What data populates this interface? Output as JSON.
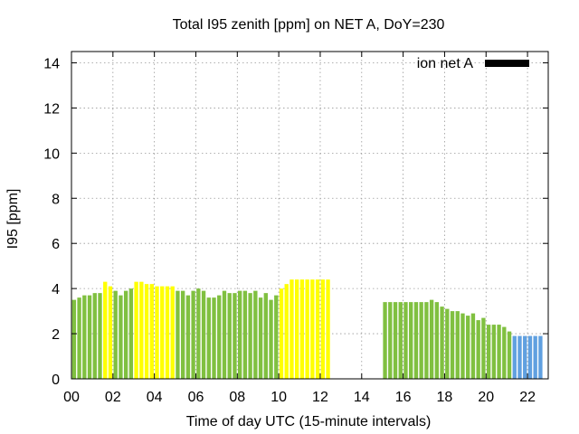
{
  "chart_data": {
    "type": "bar",
    "title": "Total I95 zenith [ppm] on NET A, DoY=230",
    "xlabel": "Time of day UTC (15-minute intervals)",
    "ylabel": "I95 [ppm]",
    "xlim": [
      0,
      23
    ],
    "ylim": [
      0,
      14.5
    ],
    "x_ticks": [
      "00",
      "02",
      "04",
      "06",
      "08",
      "10",
      "12",
      "14",
      "16",
      "18",
      "20",
      "22"
    ],
    "x_tick_values": [
      0,
      2,
      4,
      6,
      8,
      10,
      12,
      14,
      16,
      18,
      20,
      22
    ],
    "y_ticks": [
      "0",
      "2",
      "4",
      "6",
      "8",
      "10",
      "12",
      "14"
    ],
    "y_tick_values": [
      0,
      2,
      4,
      6,
      8,
      10,
      12,
      14
    ],
    "grid": true,
    "legend": {
      "label": "ion net A",
      "position": "top-right",
      "color": "#000000"
    },
    "colors": {
      "green": "#80c040",
      "yellow": "#ffff00",
      "blue": "#60a0e0"
    },
    "bar_width_hours": 0.19,
    "bars": [
      {
        "t": 0.125,
        "v": 3.5,
        "c": "green"
      },
      {
        "t": 0.375,
        "v": 3.6,
        "c": "green"
      },
      {
        "t": 0.625,
        "v": 3.7,
        "c": "green"
      },
      {
        "t": 0.875,
        "v": 3.7,
        "c": "green"
      },
      {
        "t": 1.125,
        "v": 3.8,
        "c": "green"
      },
      {
        "t": 1.375,
        "v": 3.8,
        "c": "green"
      },
      {
        "t": 1.625,
        "v": 4.3,
        "c": "yellow"
      },
      {
        "t": 1.875,
        "v": 4.1,
        "c": "yellow"
      },
      {
        "t": 2.125,
        "v": 3.9,
        "c": "green"
      },
      {
        "t": 2.375,
        "v": 3.7,
        "c": "green"
      },
      {
        "t": 2.625,
        "v": 3.9,
        "c": "green"
      },
      {
        "t": 2.875,
        "v": 4.0,
        "c": "green"
      },
      {
        "t": 3.125,
        "v": 4.3,
        "c": "yellow"
      },
      {
        "t": 3.375,
        "v": 4.3,
        "c": "yellow"
      },
      {
        "t": 3.625,
        "v": 4.2,
        "c": "yellow"
      },
      {
        "t": 3.875,
        "v": 4.2,
        "c": "yellow"
      },
      {
        "t": 4.125,
        "v": 4.1,
        "c": "yellow"
      },
      {
        "t": 4.375,
        "v": 4.1,
        "c": "yellow"
      },
      {
        "t": 4.625,
        "v": 4.1,
        "c": "yellow"
      },
      {
        "t": 4.875,
        "v": 4.1,
        "c": "yellow"
      },
      {
        "t": 5.125,
        "v": 3.9,
        "c": "green"
      },
      {
        "t": 5.375,
        "v": 3.9,
        "c": "green"
      },
      {
        "t": 5.625,
        "v": 3.7,
        "c": "green"
      },
      {
        "t": 5.875,
        "v": 3.9,
        "c": "green"
      },
      {
        "t": 6.125,
        "v": 4.0,
        "c": "green"
      },
      {
        "t": 6.375,
        "v": 3.9,
        "c": "green"
      },
      {
        "t": 6.625,
        "v": 3.6,
        "c": "green"
      },
      {
        "t": 6.875,
        "v": 3.6,
        "c": "green"
      },
      {
        "t": 7.125,
        "v": 3.7,
        "c": "green"
      },
      {
        "t": 7.375,
        "v": 3.9,
        "c": "green"
      },
      {
        "t": 7.625,
        "v": 3.8,
        "c": "green"
      },
      {
        "t": 7.875,
        "v": 3.8,
        "c": "green"
      },
      {
        "t": 8.125,
        "v": 3.9,
        "c": "green"
      },
      {
        "t": 8.375,
        "v": 3.9,
        "c": "green"
      },
      {
        "t": 8.625,
        "v": 3.8,
        "c": "green"
      },
      {
        "t": 8.875,
        "v": 3.9,
        "c": "green"
      },
      {
        "t": 9.125,
        "v": 3.6,
        "c": "green"
      },
      {
        "t": 9.375,
        "v": 3.8,
        "c": "green"
      },
      {
        "t": 9.625,
        "v": 3.5,
        "c": "green"
      },
      {
        "t": 9.875,
        "v": 3.7,
        "c": "green"
      },
      {
        "t": 10.125,
        "v": 4.0,
        "c": "yellow"
      },
      {
        "t": 10.375,
        "v": 4.2,
        "c": "yellow"
      },
      {
        "t": 10.625,
        "v": 4.4,
        "c": "yellow"
      },
      {
        "t": 10.875,
        "v": 4.4,
        "c": "yellow"
      },
      {
        "t": 11.125,
        "v": 4.4,
        "c": "yellow"
      },
      {
        "t": 11.375,
        "v": 4.4,
        "c": "yellow"
      },
      {
        "t": 11.625,
        "v": 4.4,
        "c": "yellow"
      },
      {
        "t": 11.875,
        "v": 4.4,
        "c": "yellow"
      },
      {
        "t": 12.125,
        "v": 4.4,
        "c": "yellow"
      },
      {
        "t": 12.375,
        "v": 4.4,
        "c": "yellow"
      },
      {
        "t": 15.125,
        "v": 3.4,
        "c": "green"
      },
      {
        "t": 15.375,
        "v": 3.4,
        "c": "green"
      },
      {
        "t": 15.625,
        "v": 3.4,
        "c": "green"
      },
      {
        "t": 15.875,
        "v": 3.4,
        "c": "green"
      },
      {
        "t": 16.125,
        "v": 3.4,
        "c": "green"
      },
      {
        "t": 16.375,
        "v": 3.4,
        "c": "green"
      },
      {
        "t": 16.625,
        "v": 3.4,
        "c": "green"
      },
      {
        "t": 16.875,
        "v": 3.4,
        "c": "green"
      },
      {
        "t": 17.125,
        "v": 3.4,
        "c": "green"
      },
      {
        "t": 17.375,
        "v": 3.5,
        "c": "green"
      },
      {
        "t": 17.625,
        "v": 3.4,
        "c": "green"
      },
      {
        "t": 17.875,
        "v": 3.2,
        "c": "green"
      },
      {
        "t": 18.125,
        "v": 3.1,
        "c": "green"
      },
      {
        "t": 18.375,
        "v": 3.0,
        "c": "green"
      },
      {
        "t": 18.625,
        "v": 3.0,
        "c": "green"
      },
      {
        "t": 18.875,
        "v": 2.9,
        "c": "green"
      },
      {
        "t": 19.125,
        "v": 2.8,
        "c": "green"
      },
      {
        "t": 19.375,
        "v": 2.9,
        "c": "green"
      },
      {
        "t": 19.625,
        "v": 2.6,
        "c": "green"
      },
      {
        "t": 19.875,
        "v": 2.7,
        "c": "green"
      },
      {
        "t": 20.125,
        "v": 2.4,
        "c": "green"
      },
      {
        "t": 20.375,
        "v": 2.4,
        "c": "green"
      },
      {
        "t": 20.625,
        "v": 2.4,
        "c": "green"
      },
      {
        "t": 20.875,
        "v": 2.3,
        "c": "green"
      },
      {
        "t": 21.125,
        "v": 2.1,
        "c": "green"
      },
      {
        "t": 21.375,
        "v": 1.9,
        "c": "blue"
      },
      {
        "t": 21.625,
        "v": 1.9,
        "c": "blue"
      },
      {
        "t": 21.875,
        "v": 1.9,
        "c": "blue"
      },
      {
        "t": 22.125,
        "v": 1.9,
        "c": "blue"
      },
      {
        "t": 22.375,
        "v": 1.9,
        "c": "blue"
      },
      {
        "t": 22.625,
        "v": 1.9,
        "c": "blue"
      }
    ]
  }
}
